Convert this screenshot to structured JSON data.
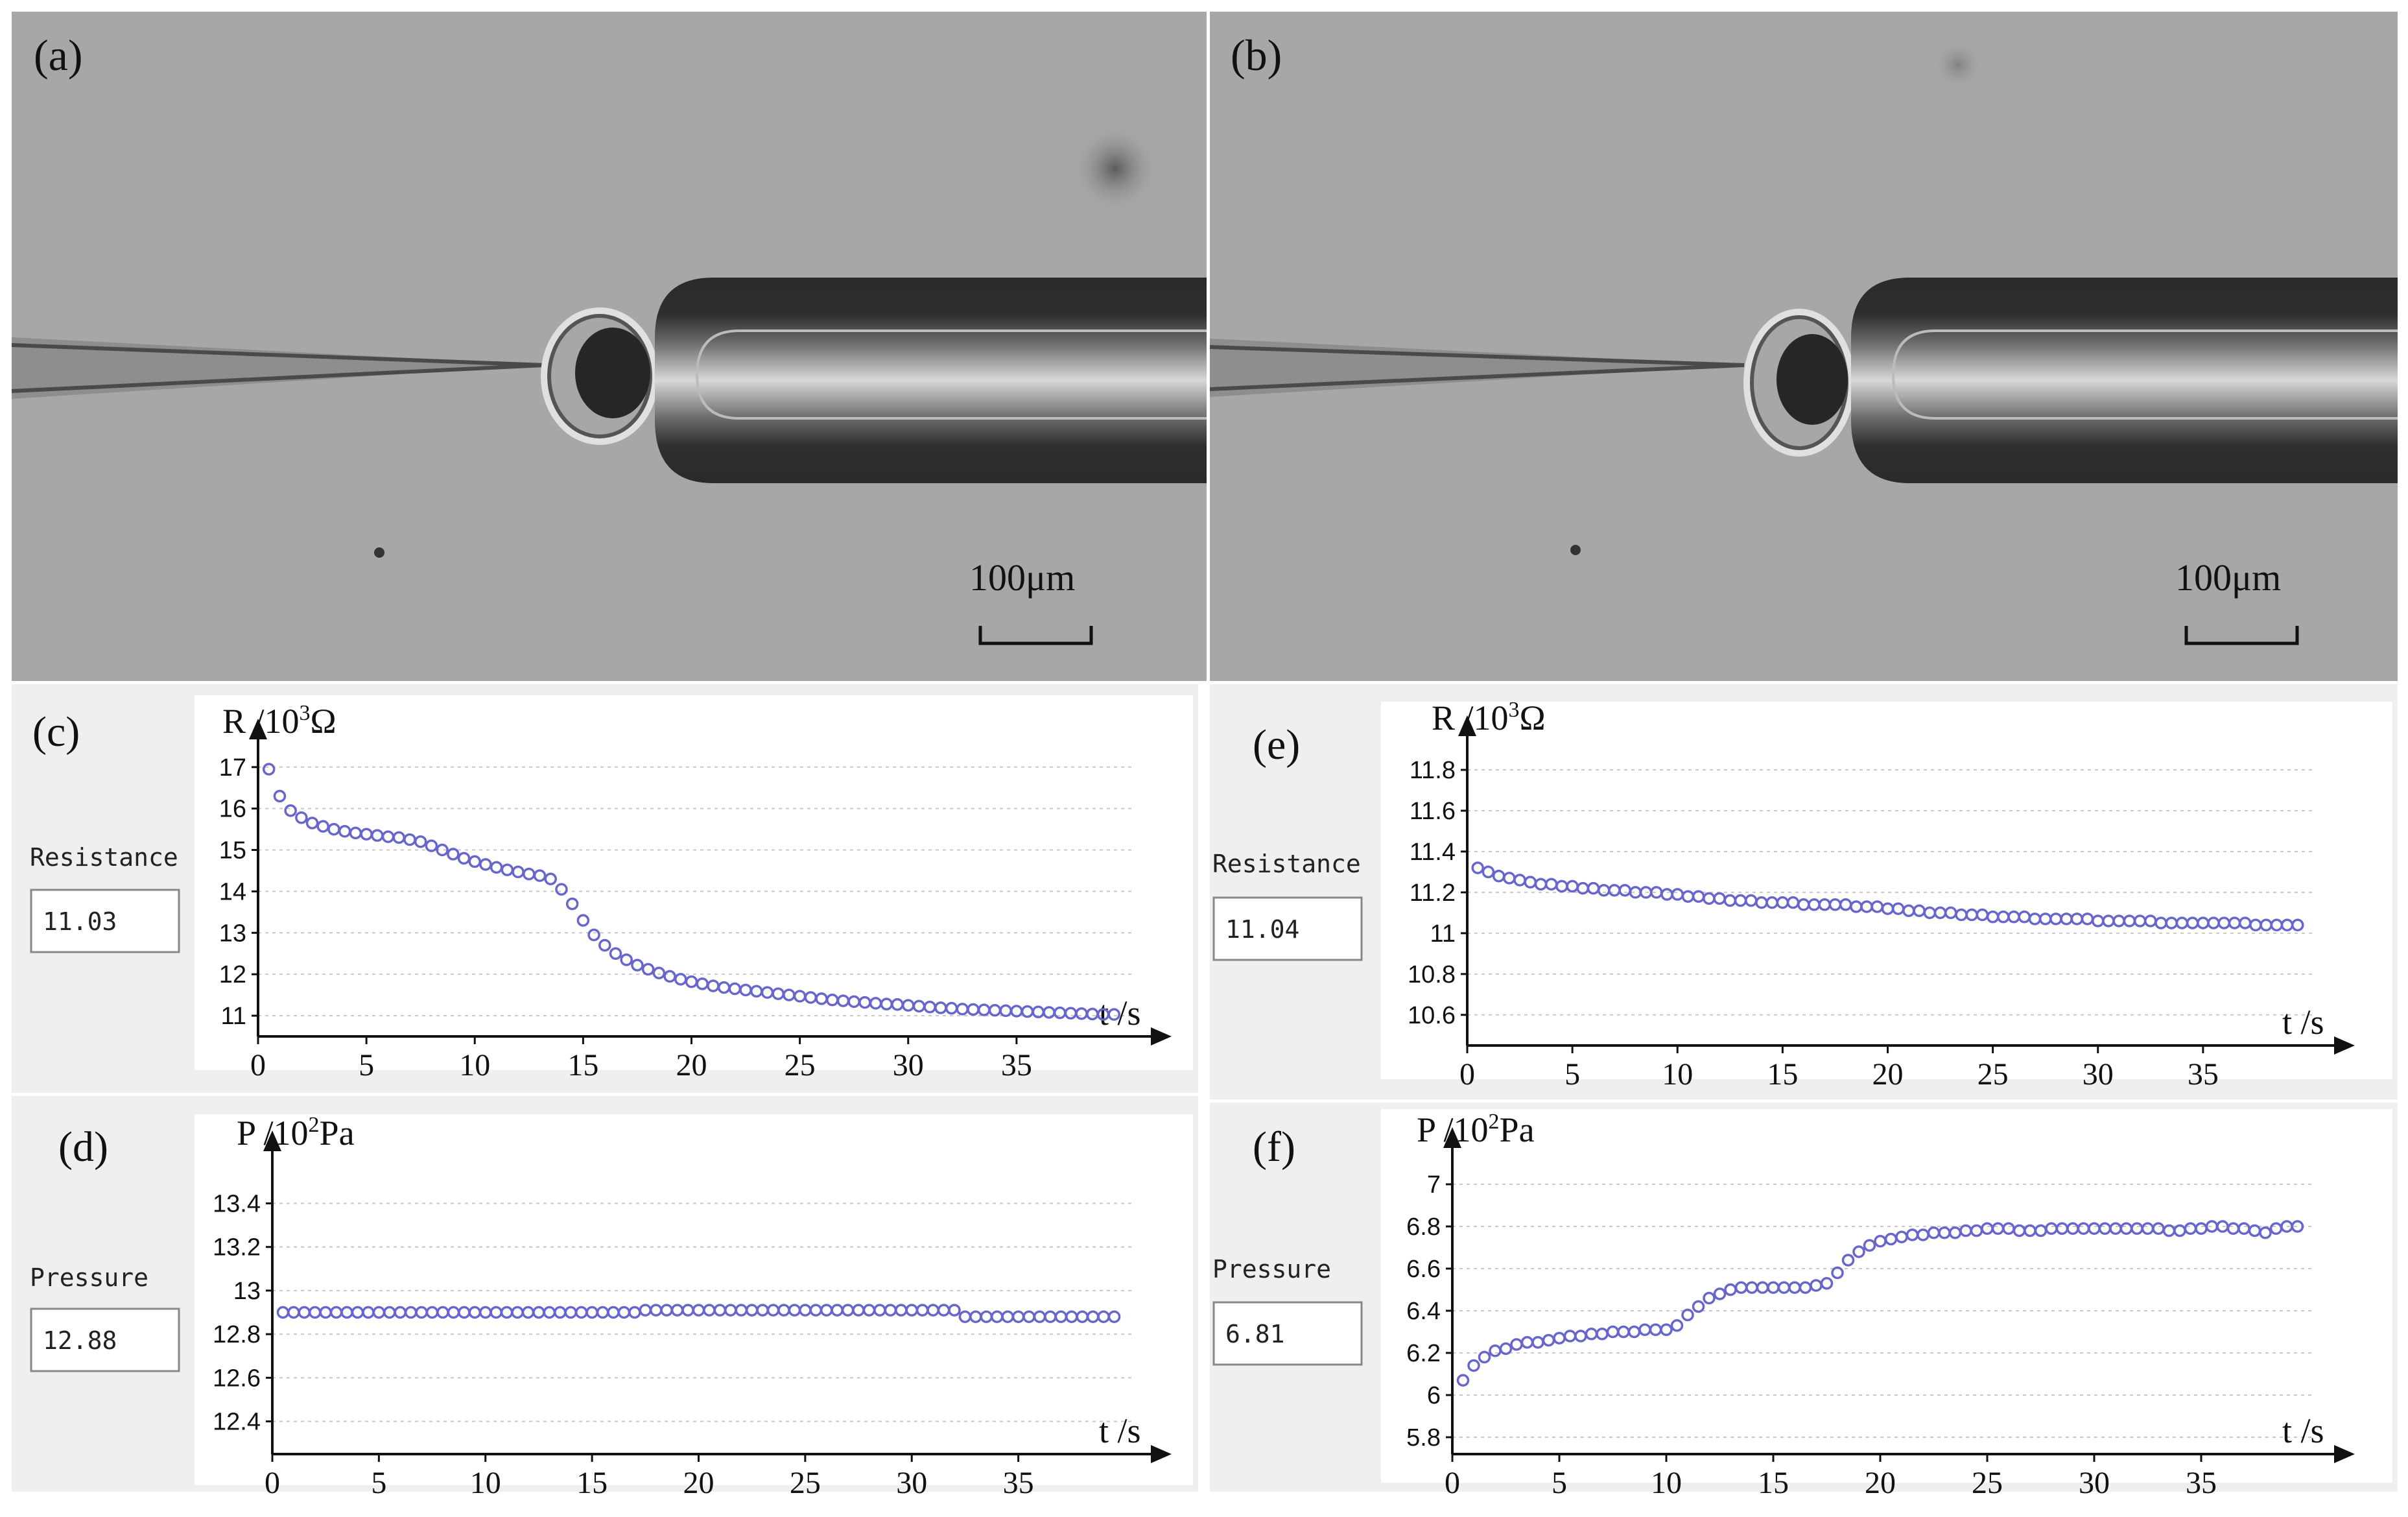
{
  "micrographs": [
    {
      "label": "(a)",
      "scalebar_text": "100μm"
    },
    {
      "label": "(b)",
      "scalebar_text": "100μm"
    }
  ],
  "chart_data": [
    {
      "id": "c",
      "type": "scatter",
      "panel_label": "(c)",
      "ylabel_main": "R /10",
      "ylabel_sup": "3",
      "ylabel_unit": "Ω",
      "xlabel": "t /s",
      "side_label": "Resistance",
      "side_value": "11.03",
      "xlim": [
        0,
        40
      ],
      "ylim": [
        10.5,
        17.2
      ],
      "xticks": [
        0,
        5,
        10,
        15,
        20,
        25,
        30,
        35
      ],
      "yticks": [
        11,
        12,
        13,
        14,
        15,
        16,
        17
      ],
      "marker_color": "#6666cc",
      "points": [
        [
          0.5,
          16.95
        ],
        [
          1,
          16.3
        ],
        [
          1.5,
          15.95
        ],
        [
          2,
          15.78
        ],
        [
          2.5,
          15.65
        ],
        [
          3,
          15.57
        ],
        [
          3.5,
          15.5
        ],
        [
          4,
          15.45
        ],
        [
          4.5,
          15.41
        ],
        [
          5,
          15.38
        ],
        [
          5.5,
          15.35
        ],
        [
          6,
          15.32
        ],
        [
          6.5,
          15.3
        ],
        [
          7,
          15.25
        ],
        [
          7.5,
          15.2
        ],
        [
          8,
          15.1
        ],
        [
          8.5,
          15.0
        ],
        [
          9,
          14.9
        ],
        [
          9.5,
          14.8
        ],
        [
          10,
          14.72
        ],
        [
          10.5,
          14.65
        ],
        [
          11,
          14.58
        ],
        [
          11.5,
          14.52
        ],
        [
          12,
          14.47
        ],
        [
          12.5,
          14.42
        ],
        [
          13,
          14.38
        ],
        [
          13.5,
          14.3
        ],
        [
          14,
          14.05
        ],
        [
          14.5,
          13.7
        ],
        [
          15,
          13.3
        ],
        [
          15.5,
          12.95
        ],
        [
          16,
          12.7
        ],
        [
          16.5,
          12.5
        ],
        [
          17,
          12.35
        ],
        [
          17.5,
          12.22
        ],
        [
          18,
          12.12
        ],
        [
          18.5,
          12.03
        ],
        [
          19,
          11.95
        ],
        [
          19.5,
          11.88
        ],
        [
          20,
          11.82
        ],
        [
          20.5,
          11.77
        ],
        [
          21,
          11.72
        ],
        [
          21.5,
          11.68
        ],
        [
          22,
          11.65
        ],
        [
          22.5,
          11.62
        ],
        [
          23,
          11.59
        ],
        [
          23.5,
          11.56
        ],
        [
          24,
          11.53
        ],
        [
          24.5,
          11.5
        ],
        [
          25,
          11.47
        ],
        [
          25.5,
          11.44
        ],
        [
          26,
          11.41
        ],
        [
          26.5,
          11.38
        ],
        [
          27,
          11.36
        ],
        [
          27.5,
          11.34
        ],
        [
          28,
          11.32
        ],
        [
          28.5,
          11.3
        ],
        [
          29,
          11.28
        ],
        [
          29.5,
          11.27
        ],
        [
          30,
          11.25
        ],
        [
          30.5,
          11.23
        ],
        [
          31,
          11.21
        ],
        [
          31.5,
          11.19
        ],
        [
          32,
          11.18
        ],
        [
          32.5,
          11.16
        ],
        [
          33,
          11.15
        ],
        [
          33.5,
          11.14
        ],
        [
          34,
          11.13
        ],
        [
          34.5,
          11.12
        ],
        [
          35,
          11.11
        ],
        [
          35.5,
          11.1
        ],
        [
          36,
          11.09
        ],
        [
          36.5,
          11.08
        ],
        [
          37,
          11.07
        ],
        [
          37.5,
          11.06
        ],
        [
          38,
          11.05
        ],
        [
          38.5,
          11.04
        ],
        [
          39,
          11.03
        ],
        [
          39.5,
          11.03
        ]
      ]
    },
    {
      "id": "e",
      "type": "scatter",
      "panel_label": "(e)",
      "ylabel_main": "R /10",
      "ylabel_sup": "3",
      "ylabel_unit": "Ω",
      "xlabel": "t /s",
      "side_label": "Resistance",
      "side_value": "11.04",
      "xlim": [
        0,
        40
      ],
      "ylim": [
        10.45,
        11.87
      ],
      "xticks": [
        0,
        5,
        10,
        15,
        20,
        25,
        30,
        35
      ],
      "yticks": [
        10.6,
        10.8,
        11,
        11.2,
        11.4,
        11.6,
        11.8
      ],
      "ytick_labels": [
        "10.6",
        "10.8",
        "11",
        "11.2",
        "11.4",
        "11.6",
        "11.8"
      ],
      "marker_color": "#6666cc",
      "points": [
        [
          0.5,
          11.32
        ],
        [
          1,
          11.3
        ],
        [
          1.5,
          11.28
        ],
        [
          2,
          11.27
        ],
        [
          2.5,
          11.26
        ],
        [
          3,
          11.25
        ],
        [
          3.5,
          11.24
        ],
        [
          4,
          11.24
        ],
        [
          4.5,
          11.23
        ],
        [
          5,
          11.23
        ],
        [
          5.5,
          11.22
        ],
        [
          6,
          11.22
        ],
        [
          6.5,
          11.21
        ],
        [
          7,
          11.21
        ],
        [
          7.5,
          11.21
        ],
        [
          8,
          11.2
        ],
        [
          8.5,
          11.2
        ],
        [
          9,
          11.2
        ],
        [
          9.5,
          11.19
        ],
        [
          10,
          11.19
        ],
        [
          10.5,
          11.18
        ],
        [
          11,
          11.18
        ],
        [
          11.5,
          11.17
        ],
        [
          12,
          11.17
        ],
        [
          12.5,
          11.16
        ],
        [
          13,
          11.16
        ],
        [
          13.5,
          11.16
        ],
        [
          14,
          11.15
        ],
        [
          14.5,
          11.15
        ],
        [
          15,
          11.15
        ],
        [
          15.5,
          11.15
        ],
        [
          16,
          11.14
        ],
        [
          16.5,
          11.14
        ],
        [
          17,
          11.14
        ],
        [
          17.5,
          11.14
        ],
        [
          18,
          11.14
        ],
        [
          18.5,
          11.13
        ],
        [
          19,
          11.13
        ],
        [
          19.5,
          11.13
        ],
        [
          20,
          11.12
        ],
        [
          20.5,
          11.12
        ],
        [
          21,
          11.11
        ],
        [
          21.5,
          11.11
        ],
        [
          22,
          11.1
        ],
        [
          22.5,
          11.1
        ],
        [
          23,
          11.1
        ],
        [
          23.5,
          11.09
        ],
        [
          24,
          11.09
        ],
        [
          24.5,
          11.09
        ],
        [
          25,
          11.08
        ],
        [
          25.5,
          11.08
        ],
        [
          26,
          11.08
        ],
        [
          26.5,
          11.08
        ],
        [
          27,
          11.07
        ],
        [
          27.5,
          11.07
        ],
        [
          28,
          11.07
        ],
        [
          28.5,
          11.07
        ],
        [
          29,
          11.07
        ],
        [
          29.5,
          11.07
        ],
        [
          30,
          11.06
        ],
        [
          30.5,
          11.06
        ],
        [
          31,
          11.06
        ],
        [
          31.5,
          11.06
        ],
        [
          32,
          11.06
        ],
        [
          32.5,
          11.06
        ],
        [
          33,
          11.05
        ],
        [
          33.5,
          11.05
        ],
        [
          34,
          11.05
        ],
        [
          34.5,
          11.05
        ],
        [
          35,
          11.05
        ],
        [
          35.5,
          11.05
        ],
        [
          36,
          11.05
        ],
        [
          36.5,
          11.05
        ],
        [
          37,
          11.05
        ],
        [
          37.5,
          11.04
        ],
        [
          38,
          11.04
        ],
        [
          38.5,
          11.04
        ],
        [
          39,
          11.04
        ],
        [
          39.5,
          11.04
        ]
      ]
    },
    {
      "id": "d",
      "type": "scatter",
      "panel_label": "(d)",
      "ylabel_main": "P /10",
      "ylabel_sup": "2",
      "ylabel_unit": "Pa",
      "xlabel": "t /s",
      "side_label": "Pressure",
      "side_value": "12.88",
      "xlim": [
        0,
        40
      ],
      "ylim": [
        12.25,
        13.55
      ],
      "xticks": [
        0,
        5,
        10,
        15,
        20,
        25,
        30,
        35
      ],
      "yticks": [
        12.4,
        12.6,
        12.8,
        13,
        13.2,
        13.4
      ],
      "ytick_labels": [
        "12.4",
        "12.6",
        "12.8",
        "13",
        "13.2",
        "13.4"
      ],
      "marker_color": "#6666cc",
      "points": [
        [
          0.5,
          12.9
        ],
        [
          1,
          12.9
        ],
        [
          1.5,
          12.9
        ],
        [
          2,
          12.9
        ],
        [
          2.5,
          12.9
        ],
        [
          3,
          12.9
        ],
        [
          3.5,
          12.9
        ],
        [
          4,
          12.9
        ],
        [
          4.5,
          12.9
        ],
        [
          5,
          12.9
        ],
        [
          5.5,
          12.9
        ],
        [
          6,
          12.9
        ],
        [
          6.5,
          12.9
        ],
        [
          7,
          12.9
        ],
        [
          7.5,
          12.9
        ],
        [
          8,
          12.9
        ],
        [
          8.5,
          12.9
        ],
        [
          9,
          12.9
        ],
        [
          9.5,
          12.9
        ],
        [
          10,
          12.9
        ],
        [
          10.5,
          12.9
        ],
        [
          11,
          12.9
        ],
        [
          11.5,
          12.9
        ],
        [
          12,
          12.9
        ],
        [
          12.5,
          12.9
        ],
        [
          13,
          12.9
        ],
        [
          13.5,
          12.9
        ],
        [
          14,
          12.9
        ],
        [
          14.5,
          12.9
        ],
        [
          15,
          12.9
        ],
        [
          15.5,
          12.9
        ],
        [
          16,
          12.9
        ],
        [
          16.5,
          12.9
        ],
        [
          17,
          12.9
        ],
        [
          17.5,
          12.91
        ],
        [
          18,
          12.91
        ],
        [
          18.5,
          12.91
        ],
        [
          19,
          12.91
        ],
        [
          19.5,
          12.91
        ],
        [
          20,
          12.91
        ],
        [
          20.5,
          12.91
        ],
        [
          21,
          12.91
        ],
        [
          21.5,
          12.91
        ],
        [
          22,
          12.91
        ],
        [
          22.5,
          12.91
        ],
        [
          23,
          12.91
        ],
        [
          23.5,
          12.91
        ],
        [
          24,
          12.91
        ],
        [
          24.5,
          12.91
        ],
        [
          25,
          12.91
        ],
        [
          25.5,
          12.91
        ],
        [
          26,
          12.91
        ],
        [
          26.5,
          12.91
        ],
        [
          27,
          12.91
        ],
        [
          27.5,
          12.91
        ],
        [
          28,
          12.91
        ],
        [
          28.5,
          12.91
        ],
        [
          29,
          12.91
        ],
        [
          29.5,
          12.91
        ],
        [
          30,
          12.91
        ],
        [
          30.5,
          12.91
        ],
        [
          31,
          12.91
        ],
        [
          31.5,
          12.91
        ],
        [
          32,
          12.91
        ],
        [
          32.5,
          12.88
        ],
        [
          33,
          12.88
        ],
        [
          33.5,
          12.88
        ],
        [
          34,
          12.88
        ],
        [
          34.5,
          12.88
        ],
        [
          35,
          12.88
        ],
        [
          35.5,
          12.88
        ],
        [
          36,
          12.88
        ],
        [
          36.5,
          12.88
        ],
        [
          37,
          12.88
        ],
        [
          37.5,
          12.88
        ],
        [
          38,
          12.88
        ],
        [
          38.5,
          12.88
        ],
        [
          39,
          12.88
        ],
        [
          39.5,
          12.88
        ]
      ]
    },
    {
      "id": "f",
      "type": "scatter",
      "panel_label": "(f)",
      "ylabel_main": "P /10",
      "ylabel_sup": "2",
      "ylabel_unit": "Pa",
      "xlabel": "t /s",
      "side_label": "Pressure",
      "side_value": "6.81",
      "xlim": [
        0,
        40
      ],
      "ylim": [
        5.72,
        7.08
      ],
      "xticks": [
        0,
        5,
        10,
        15,
        20,
        25,
        30,
        35
      ],
      "yticks": [
        5.8,
        6,
        6.2,
        6.4,
        6.6,
        6.8,
        7
      ],
      "ytick_labels": [
        "5.8",
        "6",
        "6.2",
        "6.4",
        "6.6",
        "6.8",
        "7"
      ],
      "marker_color": "#6666cc",
      "points": [
        [
          0.5,
          6.07
        ],
        [
          1,
          6.14
        ],
        [
          1.5,
          6.18
        ],
        [
          2,
          6.21
        ],
        [
          2.5,
          6.22
        ],
        [
          3,
          6.24
        ],
        [
          3.5,
          6.25
        ],
        [
          4,
          6.25
        ],
        [
          4.5,
          6.26
        ],
        [
          5,
          6.27
        ],
        [
          5.5,
          6.28
        ],
        [
          6,
          6.28
        ],
        [
          6.5,
          6.29
        ],
        [
          7,
          6.29
        ],
        [
          7.5,
          6.3
        ],
        [
          8,
          6.3
        ],
        [
          8.5,
          6.3
        ],
        [
          9,
          6.31
        ],
        [
          9.5,
          6.31
        ],
        [
          10,
          6.31
        ],
        [
          10.5,
          6.33
        ],
        [
          11,
          6.38
        ],
        [
          11.5,
          6.42
        ],
        [
          12,
          6.46
        ],
        [
          12.5,
          6.48
        ],
        [
          13,
          6.5
        ],
        [
          13.5,
          6.51
        ],
        [
          14,
          6.51
        ],
        [
          14.5,
          6.51
        ],
        [
          15,
          6.51
        ],
        [
          15.5,
          6.51
        ],
        [
          16,
          6.51
        ],
        [
          16.5,
          6.51
        ],
        [
          17,
          6.52
        ],
        [
          17.5,
          6.53
        ],
        [
          18,
          6.58
        ],
        [
          18.5,
          6.64
        ],
        [
          19,
          6.68
        ],
        [
          19.5,
          6.71
        ],
        [
          20,
          6.73
        ],
        [
          20.5,
          6.74
        ],
        [
          21,
          6.75
        ],
        [
          21.5,
          6.76
        ],
        [
          22,
          6.76
        ],
        [
          22.5,
          6.77
        ],
        [
          23,
          6.77
        ],
        [
          23.5,
          6.77
        ],
        [
          24,
          6.78
        ],
        [
          24.5,
          6.78
        ],
        [
          25,
          6.79
        ],
        [
          25.5,
          6.79
        ],
        [
          26,
          6.79
        ],
        [
          26.5,
          6.78
        ],
        [
          27,
          6.78
        ],
        [
          27.5,
          6.78
        ],
        [
          28,
          6.79
        ],
        [
          28.5,
          6.79
        ],
        [
          29,
          6.79
        ],
        [
          29.5,
          6.79
        ],
        [
          30,
          6.79
        ],
        [
          30.5,
          6.79
        ],
        [
          31,
          6.79
        ],
        [
          31.5,
          6.79
        ],
        [
          32,
          6.79
        ],
        [
          32.5,
          6.79
        ],
        [
          33,
          6.79
        ],
        [
          33.5,
          6.78
        ],
        [
          34,
          6.78
        ],
        [
          34.5,
          6.79
        ],
        [
          35,
          6.79
        ],
        [
          35.5,
          6.8
        ],
        [
          36,
          6.8
        ],
        [
          36.5,
          6.79
        ],
        [
          37,
          6.79
        ],
        [
          37.5,
          6.78
        ],
        [
          38,
          6.77
        ],
        [
          38.5,
          6.79
        ],
        [
          39,
          6.8
        ],
        [
          39.5,
          6.8
        ]
      ]
    }
  ]
}
